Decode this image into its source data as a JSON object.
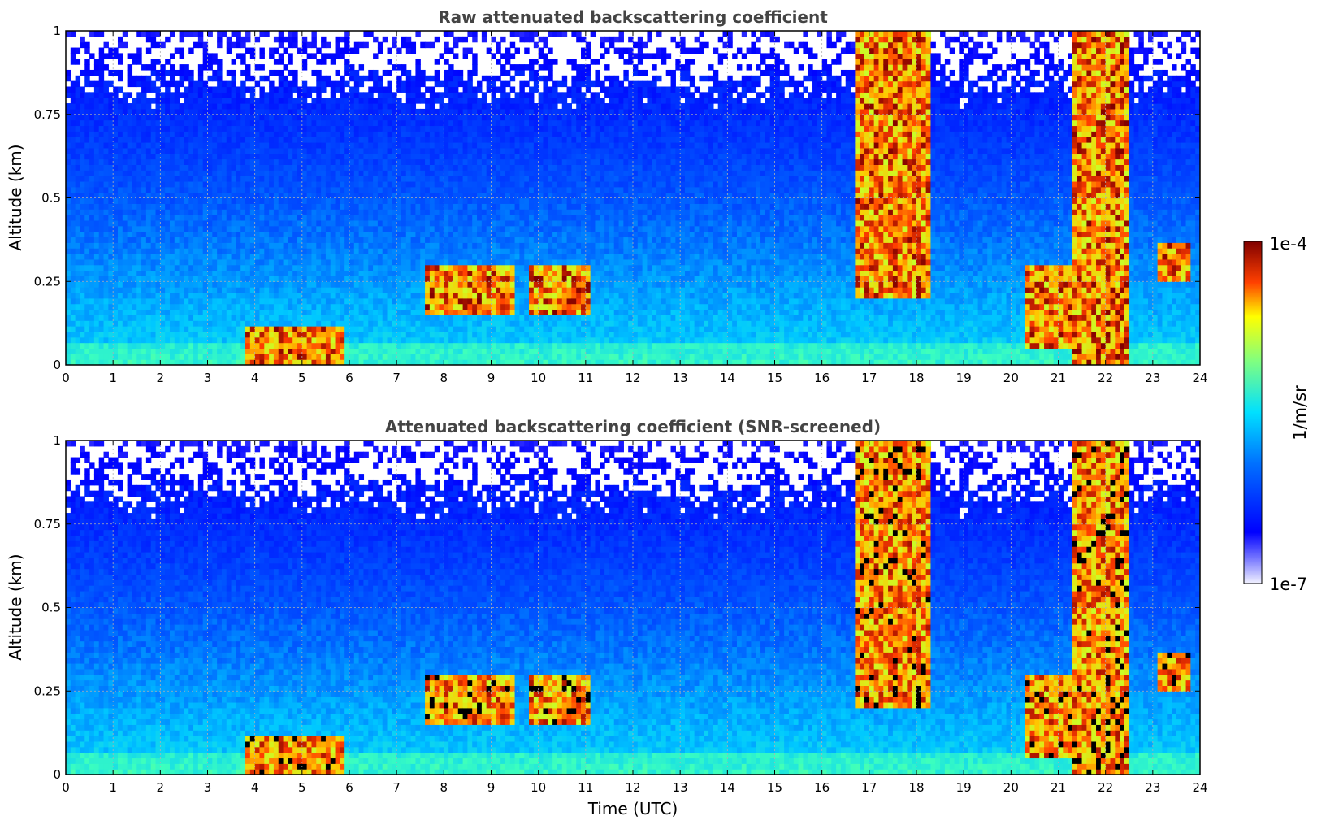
{
  "chart_data": [
    {
      "type": "heatmap",
      "title": "Raw attenuated backscattering coefficient",
      "xlabel": "",
      "ylabel": "Altitude (km)",
      "xlim": [
        0,
        24
      ],
      "ylim": [
        0,
        1
      ],
      "x_ticks": [
        "0",
        "1",
        "2",
        "3",
        "4",
        "5",
        "6",
        "7",
        "8",
        "9",
        "10",
        "11",
        "12",
        "13",
        "14",
        "15",
        "16",
        "17",
        "18",
        "19",
        "20",
        "21",
        "22",
        "23",
        "24"
      ],
      "y_ticks": [
        "0",
        "0.25",
        "0.5",
        "0.75",
        "1"
      ],
      "grid": true,
      "screened": false,
      "colorscale": "log",
      "features": [
        {
          "t_start": 7.6,
          "t_end": 9.5,
          "alt_low": 0.15,
          "alt_high": 0.3,
          "level": "high"
        },
        {
          "t_start": 9.8,
          "t_end": 11.1,
          "alt_low": 0.15,
          "alt_high": 0.3,
          "level": "high"
        },
        {
          "t_start": 20.3,
          "t_end": 21.3,
          "alt_low": 0.05,
          "alt_high": 0.3,
          "level": "high"
        },
        {
          "t_start": 23.1,
          "t_end": 23.8,
          "alt_low": 0.25,
          "alt_high": 0.37,
          "level": "high"
        },
        {
          "t_start": 3.8,
          "t_end": 5.9,
          "alt_low": 0.0,
          "alt_high": 0.12,
          "level": "high"
        },
        {
          "t_start": 16.7,
          "t_end": 18.3,
          "alt_low": 0.2,
          "alt_high": 1.0,
          "level": "high"
        },
        {
          "t_start": 21.3,
          "t_end": 22.5,
          "alt_low": 0.0,
          "alt_high": 1.0,
          "level": "high"
        }
      ]
    },
    {
      "type": "heatmap",
      "title": "Attenuated backscattering coefficient (SNR-screened)",
      "xlabel": "Time (UTC)",
      "ylabel": "Altitude (km)",
      "xlim": [
        0,
        24
      ],
      "ylim": [
        0,
        1
      ],
      "x_ticks": [
        "0",
        "1",
        "2",
        "3",
        "4",
        "5",
        "6",
        "7",
        "8",
        "9",
        "10",
        "11",
        "12",
        "13",
        "14",
        "15",
        "16",
        "17",
        "18",
        "19",
        "20",
        "21",
        "22",
        "23",
        "24"
      ],
      "y_ticks": [
        "0",
        "0.25",
        "0.5",
        "0.75",
        "1"
      ],
      "grid": true,
      "screened": true,
      "colorscale": "log",
      "features": [
        {
          "t_start": 7.6,
          "t_end": 9.5,
          "alt_low": 0.15,
          "alt_high": 0.3,
          "level": "high"
        },
        {
          "t_start": 9.8,
          "t_end": 11.1,
          "alt_low": 0.15,
          "alt_high": 0.3,
          "level": "high"
        },
        {
          "t_start": 20.3,
          "t_end": 21.3,
          "alt_low": 0.05,
          "alt_high": 0.3,
          "level": "high"
        },
        {
          "t_start": 23.1,
          "t_end": 23.8,
          "alt_low": 0.25,
          "alt_high": 0.37,
          "level": "high"
        },
        {
          "t_start": 3.8,
          "t_end": 5.9,
          "alt_low": 0.0,
          "alt_high": 0.12,
          "level": "high"
        },
        {
          "t_start": 16.7,
          "t_end": 18.3,
          "alt_low": 0.2,
          "alt_high": 1.0,
          "level": "high"
        },
        {
          "t_start": 21.3,
          "t_end": 22.5,
          "alt_low": 0.0,
          "alt_high": 1.0,
          "level": "high"
        }
      ]
    }
  ],
  "colorbar": {
    "label": "1/m/sr",
    "max_label": "1e-4",
    "min_label": "1e-7",
    "colormap": "jet",
    "scale": "log"
  }
}
